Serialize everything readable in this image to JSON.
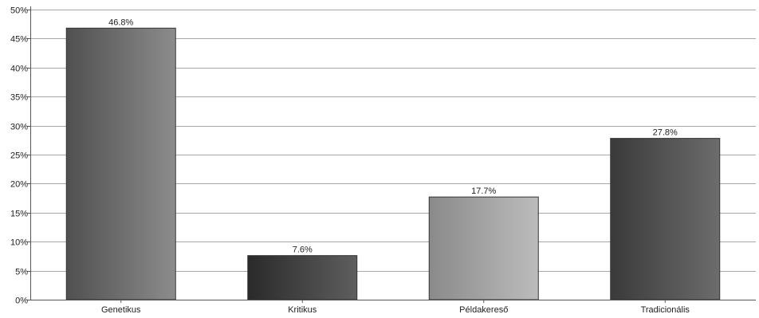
{
  "chart_data": {
    "type": "bar",
    "title": "",
    "xlabel": "",
    "ylabel": "",
    "categories": [
      "Genetikus",
      "Kritikus",
      "Példakereső",
      "Tradicionális"
    ],
    "values": [
      46.8,
      7.6,
      17.7,
      27.8
    ],
    "value_labels": [
      "46.8%",
      "7.6%",
      "17.7%",
      "27.8%"
    ],
    "ylim": [
      0,
      50
    ],
    "yticks": [
      0,
      5,
      10,
      15,
      20,
      25,
      30,
      35,
      40,
      45,
      50
    ],
    "ytick_labels": [
      "0%",
      "5%",
      "10%",
      "15%",
      "20%",
      "25%",
      "30%",
      "35%",
      "40%",
      "45%",
      "50%"
    ],
    "grid": true,
    "legend": "none",
    "bar_gradients": [
      [
        "#505050",
        "#8c8c8c"
      ],
      [
        "#2a2a2a",
        "#5e5e5e"
      ],
      [
        "#8a8a8a",
        "#bcbcbc"
      ],
      [
        "#3a3a3a",
        "#6c6c6c"
      ]
    ]
  }
}
